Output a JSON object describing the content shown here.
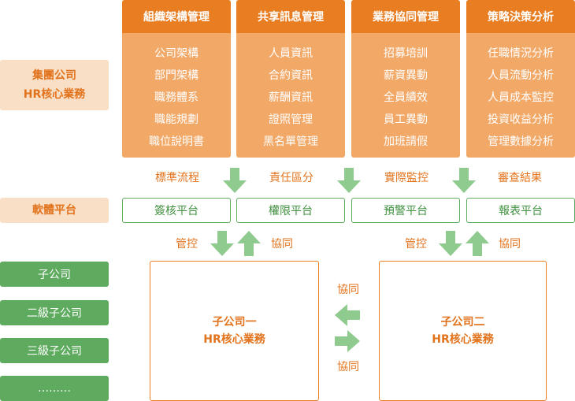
{
  "left_labels": {
    "group": [
      "集團公司",
      "HR核心業務"
    ],
    "software": "軟體平台",
    "subsidiaries": [
      "子公司",
      "二級子公司",
      "三級子公司",
      "………"
    ]
  },
  "columns": [
    {
      "title": "組織架構管理",
      "items": [
        "公司架構",
        "部門架構",
        "職務體系",
        "職能規劃",
        "職位說明書"
      ]
    },
    {
      "title": "共享訊息管理",
      "items": [
        "人員資訊",
        "合約資訊",
        "薪酬資訊",
        "證照管理",
        "黑名單管理"
      ]
    },
    {
      "title": "業務協同管理",
      "items": [
        "招募培訓",
        "薪資異動",
        "全員績效",
        "員工異動",
        "加班請假"
      ]
    },
    {
      "title": "策略決策分析",
      "items": [
        "任職情況分析",
        "人員流動分析",
        "人員成本監控",
        "投資收益分析",
        "管理數據分析"
      ]
    }
  ],
  "flow_labels": [
    "標準流程",
    "責任區分",
    "實際監控",
    "審查結果"
  ],
  "platforms": [
    "簽核平台",
    "權限平台",
    "預警平台",
    "報表平台"
  ],
  "control_labels": {
    "left_control": "管控",
    "left_sync": "協同",
    "right_control": "管控",
    "right_sync": "協同",
    "mid_top": "協同",
    "mid_bottom": "協同"
  },
  "sub_boxes": [
    {
      "line1": "子公司一",
      "line2": "HR核心業務"
    },
    {
      "line1": "子公司二",
      "line2": "HR核心業務"
    }
  ],
  "colors": {
    "orange_dark": "#e87d22",
    "orange_light": "#f2a867",
    "peach": "#f9dfc6",
    "green": "#5eaa5e",
    "arrow_green": "#8fca8f"
  }
}
